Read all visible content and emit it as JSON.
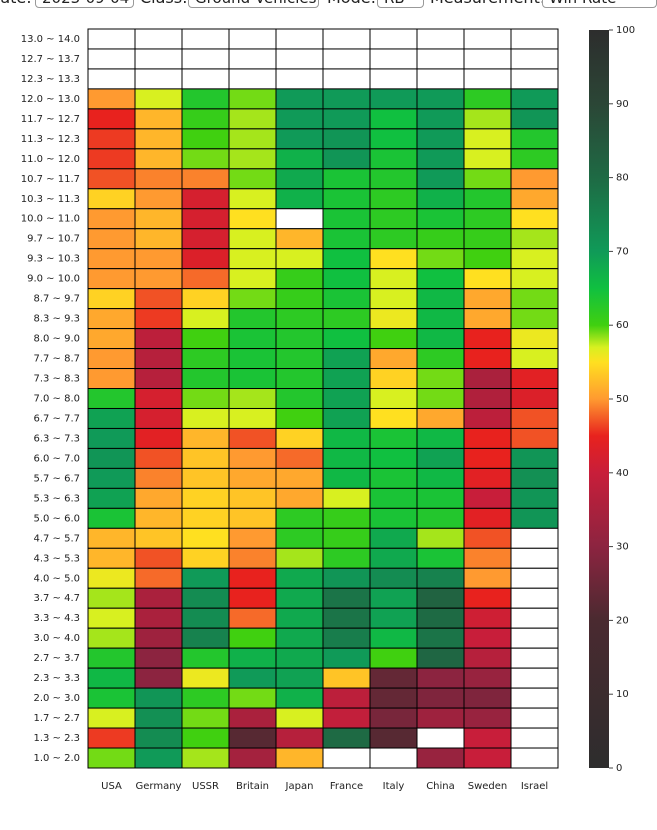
{
  "controls": [
    {
      "label": "Date:",
      "value": "2023-09-04"
    },
    {
      "label": "Class:",
      "value": "Ground Vehicles"
    },
    {
      "label": "Mode:",
      "value": "RB"
    },
    {
      "label": "Measurement:",
      "value": "Win Rate"
    }
  ],
  "chart_data": {
    "type": "heatmap",
    "x": [
      "USA",
      "Germany",
      "USSR",
      "Britain",
      "Japan",
      "France",
      "Italy",
      "China",
      "Sweden",
      "Israel"
    ],
    "y": [
      "13.0 ~ 14.0",
      "12.7 ~ 13.7",
      "12.3 ~ 13.3",
      "12.0 ~ 13.0",
      "11.7 ~ 12.7",
      "11.3 ~ 12.3",
      "11.0 ~ 12.0",
      "10.7 ~ 11.7",
      "10.3 ~ 11.3",
      "10.0 ~ 11.0",
      "9.7 ~ 10.7",
      "9.3 ~ 10.3",
      "9.0 ~ 10.0",
      "8.7 ~ 9.7",
      "8.3 ~ 9.3",
      "8.0 ~ 9.0",
      "7.7 ~ 8.7",
      "7.3 ~ 8.3",
      "7.0 ~ 8.0",
      "6.7 ~ 7.7",
      "6.3 ~ 7.3",
      "6.0 ~ 7.0",
      "5.7 ~ 6.7",
      "5.3 ~ 6.3",
      "5.0 ~ 6.0",
      "4.7 ~ 5.7",
      "4.3 ~ 5.3",
      "4.0 ~ 5.0",
      "3.7 ~ 4.7",
      "3.3 ~ 4.3",
      "3.0 ~ 4.0",
      "2.7 ~ 3.7",
      "2.3 ~ 3.3",
      "2.0 ~ 3.0",
      "1.7 ~ 2.7",
      "1.3 ~ 2.3",
      "1.0 ~ 2.0"
    ],
    "z": [
      [
        null,
        null,
        null,
        null,
        null,
        null,
        null,
        null,
        null,
        null
      ],
      [
        null,
        null,
        null,
        null,
        null,
        null,
        null,
        null,
        null,
        null
      ],
      [
        null,
        null,
        null,
        null,
        null,
        null,
        null,
        null,
        null,
        null
      ],
      [
        50,
        57,
        63,
        59,
        70,
        70,
        70,
        70,
        62,
        70
      ],
      [
        45,
        52,
        61,
        58,
        70,
        70,
        65,
        70,
        58,
        71
      ],
      [
        46,
        52,
        60,
        58,
        70,
        71,
        65,
        70,
        57,
        63
      ],
      [
        46,
        52,
        59,
        58,
        67,
        71,
        64,
        70,
        57,
        62
      ],
      [
        47,
        49,
        49,
        59,
        68,
        64,
        63,
        70,
        59,
        50
      ],
      [
        54,
        50,
        42,
        57,
        67,
        64,
        62,
        67,
        63,
        51
      ],
      [
        50,
        52,
        42,
        55,
        null,
        64,
        62,
        64,
        62,
        55
      ],
      [
        50,
        52,
        42,
        57,
        52,
        64,
        62,
        61,
        61,
        58
      ],
      [
        50,
        50,
        43,
        57,
        57,
        65,
        55,
        59,
        60,
        57
      ],
      [
        50,
        50,
        48,
        57,
        61,
        65,
        57,
        65,
        55,
        57
      ],
      [
        54,
        47,
        54,
        59,
        61,
        64,
        57,
        66,
        51,
        59
      ],
      [
        51,
        46,
        57,
        63,
        62,
        62,
        56,
        66,
        51,
        59
      ],
      [
        51,
        38,
        60,
        64,
        63,
        65,
        60,
        66,
        45,
        56
      ],
      [
        50,
        37,
        62,
        64,
        63,
        69,
        51,
        62,
        45,
        57
      ],
      [
        50,
        37,
        63,
        64,
        63,
        69,
        54,
        59,
        35,
        44
      ],
      [
        63,
        42,
        59,
        58,
        63,
        69,
        57,
        59,
        36,
        43
      ],
      [
        69,
        42,
        57,
        57,
        60,
        69,
        55,
        51,
        38,
        47
      ],
      [
        70,
        44,
        52,
        47,
        54,
        66,
        64,
        66,
        45,
        47
      ],
      [
        71,
        47,
        53,
        50,
        48,
        66,
        65,
        69,
        45,
        71
      ],
      [
        70,
        49,
        53,
        51,
        51,
        66,
        64,
        66,
        44,
        72
      ],
      [
        69,
        51,
        54,
        53,
        51,
        57,
        64,
        64,
        40,
        71
      ],
      [
        64,
        52,
        54,
        53,
        62,
        61,
        64,
        63,
        44,
        71
      ],
      [
        52,
        53,
        55,
        50,
        62,
        61,
        68,
        58,
        47,
        null
      ],
      [
        52,
        47,
        54,
        49,
        58,
        62,
        68,
        64,
        49,
        null
      ],
      [
        56,
        48,
        70,
        45,
        68,
        71,
        73,
        75,
        50,
        null
      ],
      [
        58,
        35,
        73,
        45,
        68,
        78,
        69,
        82,
        45,
        null
      ],
      [
        57,
        35,
        73,
        48,
        68,
        78,
        69,
        80,
        41,
        null
      ],
      [
        58,
        33,
        75,
        60,
        68,
        76,
        66,
        78,
        40,
        null
      ],
      [
        63,
        30,
        63,
        67,
        68,
        70,
        60,
        81,
        37,
        null
      ],
      [
        66,
        30,
        56,
        70,
        69,
        53,
        24,
        30,
        32,
        null
      ],
      [
        64,
        71,
        62,
        59,
        67,
        38,
        24,
        28,
        28,
        null
      ],
      [
        57,
        72,
        59,
        35,
        57,
        39,
        27,
        33,
        32,
        null
      ],
      [
        46,
        73,
        60,
        22,
        37,
        80,
        22,
        null,
        40,
        null
      ],
      [
        59,
        70,
        58,
        34,
        52,
        null,
        null,
        32,
        40,
        null
      ]
    ],
    "zlim": [
      0,
      100
    ],
    "zticks": [
      0,
      10,
      20,
      30,
      40,
      50,
      60,
      70,
      80,
      90,
      100
    ],
    "colorscale": [
      [
        0,
        "#2d2d2d"
      ],
      [
        20,
        "#4a2a30"
      ],
      [
        30,
        "#8c2440"
      ],
      [
        40,
        "#c81e3a"
      ],
      [
        45,
        "#e8221e"
      ],
      [
        50,
        "#ff9a30"
      ],
      [
        55,
        "#ffe020"
      ],
      [
        57,
        "#d8f020"
      ],
      [
        60,
        "#40d010"
      ],
      [
        65,
        "#10c040"
      ],
      [
        70,
        "#109a58"
      ],
      [
        80,
        "#1e6a44"
      ],
      [
        90,
        "#2b4636"
      ],
      [
        100,
        "#2d2d2d"
      ]
    ]
  }
}
